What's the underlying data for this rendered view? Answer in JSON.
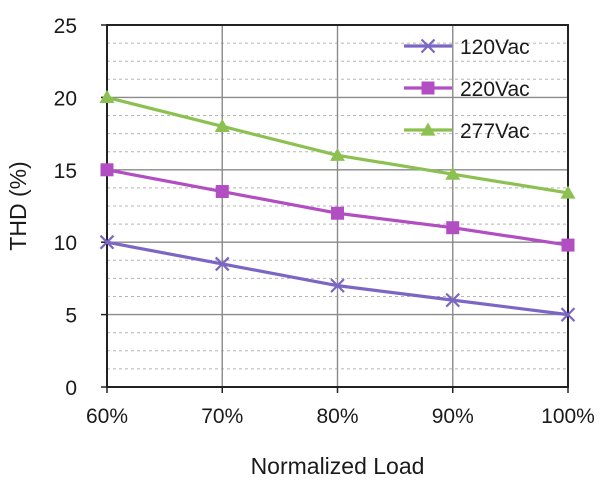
{
  "chart_data": {
    "type": "line",
    "title": "",
    "xlabel": "Normalized Load",
    "ylabel": "THD (%)",
    "categories": [
      "60%",
      "70%",
      "80%",
      "90%",
      "100%"
    ],
    "ylim": [
      0,
      25
    ],
    "yticks": [
      0,
      5,
      10,
      15,
      20,
      25
    ],
    "y_minor_step": 1.25,
    "grid": true,
    "legend_position": "top-right",
    "series": [
      {
        "name": "120Vac",
        "marker": "x",
        "color": "#7b66c4",
        "values": [
          10,
          8.5,
          7,
          6,
          5
        ]
      },
      {
        "name": "220Vac",
        "marker": "square",
        "color": "#b14ec1",
        "values": [
          15,
          13.5,
          12,
          11,
          9.8
        ]
      },
      {
        "name": "277Vac",
        "marker": "triangle",
        "color": "#8cc152",
        "values": [
          20,
          18,
          16,
          14.7,
          13.4
        ]
      }
    ]
  }
}
